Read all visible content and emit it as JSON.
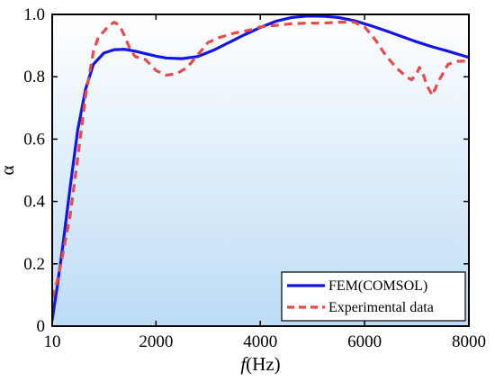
{
  "chart_data": {
    "type": "line",
    "title": "",
    "xlabel_italic": "f",
    "xlabel_rest": "(Hz)",
    "ylabel": "α",
    "xlim": [
      10,
      8000
    ],
    "ylim": [
      0,
      1.0
    ],
    "grid": false,
    "legend_position": "bottom-right",
    "x_ticks": [
      10,
      2000,
      4000,
      6000,
      8000
    ],
    "x_tick_labels": [
      "10",
      "2000",
      "4000",
      "6000",
      "8000"
    ],
    "y_ticks": [
      0,
      0.2,
      0.4,
      0.6,
      0.8,
      1.0
    ],
    "y_tick_labels": [
      "0",
      "0.2",
      "0.4",
      "0.6",
      "0.8",
      "1.0"
    ],
    "background_gradient": [
      "#ffffff",
      "#bcdcf5"
    ],
    "series": [
      {
        "name": "FEM(COMSOL)",
        "style": "solid",
        "color": "#1515e6",
        "x": [
          10,
          100,
          200,
          350,
          500,
          650,
          800,
          1000,
          1200,
          1400,
          1600,
          1800,
          2000,
          2200,
          2500,
          2800,
          3100,
          3400,
          3700,
          4000,
          4300,
          4600,
          4900,
          5200,
          5500,
          5800,
          6100,
          6400,
          6700,
          7000,
          7300,
          7600,
          8000
        ],
        "y": [
          0.02,
          0.12,
          0.24,
          0.44,
          0.63,
          0.76,
          0.84,
          0.876,
          0.887,
          0.888,
          0.882,
          0.874,
          0.866,
          0.86,
          0.858,
          0.865,
          0.885,
          0.91,
          0.935,
          0.958,
          0.978,
          0.99,
          0.995,
          0.994,
          0.99,
          0.98,
          0.965,
          0.948,
          0.93,
          0.912,
          0.896,
          0.882,
          0.862
        ]
      },
      {
        "name": "Experimental data",
        "style": "dashed",
        "color": "#e84a4a",
        "x": [
          10,
          100,
          200,
          350,
          500,
          650,
          800,
          900,
          1000,
          1100,
          1200,
          1300,
          1400,
          1500,
          1600,
          1700,
          1800,
          2000,
          2200,
          2400,
          2600,
          2800,
          3000,
          3200,
          3500,
          3800,
          4000,
          4300,
          4600,
          4900,
          5200,
          5500,
          5800,
          6000,
          6200,
          6400,
          6600,
          6800,
          6900,
          7000,
          7050,
          7100,
          7200,
          7300,
          7400,
          7600,
          7800,
          8000
        ],
        "y": [
          0.09,
          0.14,
          0.22,
          0.35,
          0.54,
          0.74,
          0.88,
          0.93,
          0.945,
          0.965,
          0.975,
          0.965,
          0.93,
          0.89,
          0.865,
          0.86,
          0.855,
          0.82,
          0.805,
          0.81,
          0.83,
          0.87,
          0.91,
          0.925,
          0.94,
          0.95,
          0.96,
          0.965,
          0.97,
          0.972,
          0.972,
          0.975,
          0.975,
          0.96,
          0.92,
          0.87,
          0.83,
          0.8,
          0.79,
          0.81,
          0.83,
          0.82,
          0.77,
          0.74,
          0.78,
          0.84,
          0.85,
          0.85
        ]
      }
    ]
  }
}
